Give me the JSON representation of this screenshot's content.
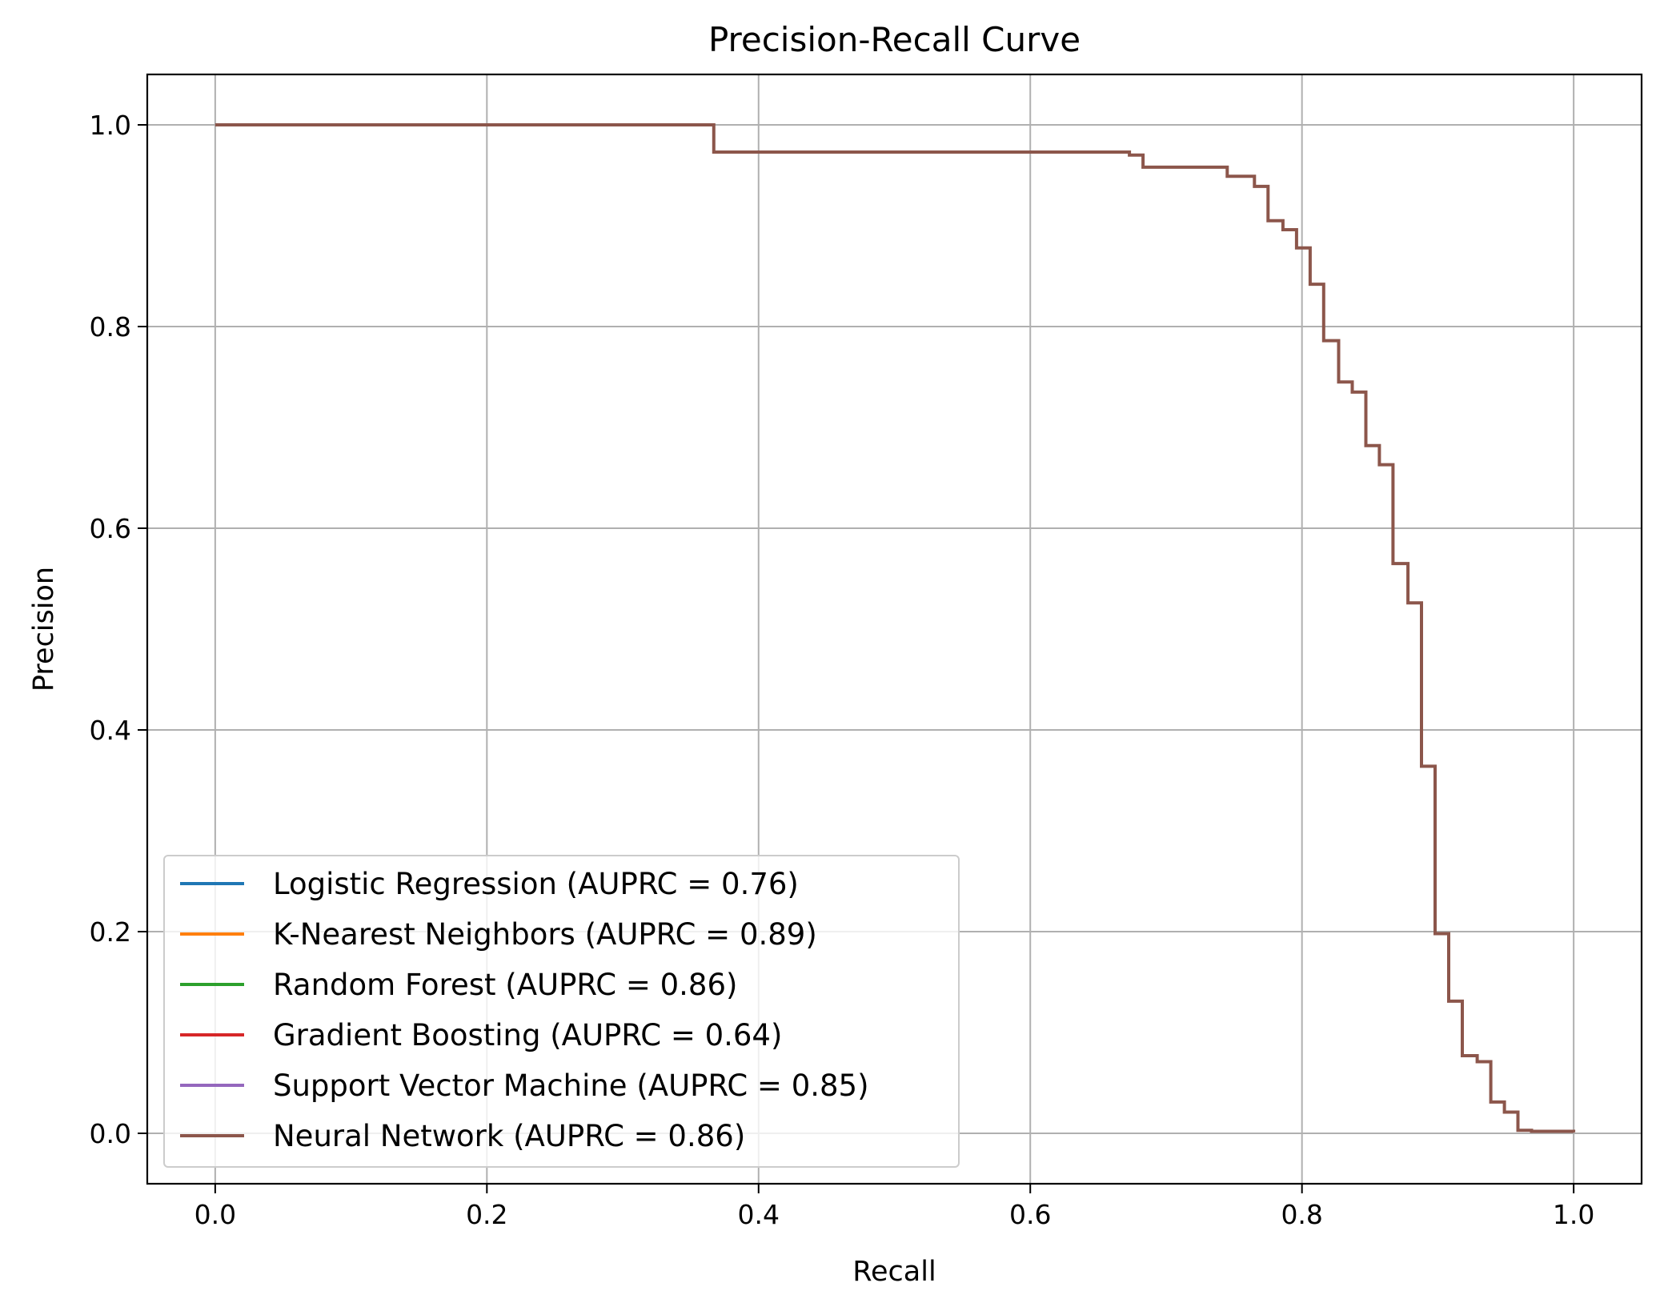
{
  "chart_data": {
    "type": "line",
    "title": "Precision-Recall Curve",
    "xlabel": "Recall",
    "ylabel": "Precision",
    "xlim": [
      -0.05,
      1.05
    ],
    "ylim": [
      -0.05,
      1.05
    ],
    "xticks": [
      0.0,
      0.2,
      0.4,
      0.6,
      0.8,
      1.0
    ],
    "yticks": [
      0.0,
      0.2,
      0.4,
      0.6,
      0.8,
      1.0
    ],
    "xtick_labels": [
      "0.0",
      "0.2",
      "0.4",
      "0.6",
      "0.8",
      "1.0"
    ],
    "ytick_labels": [
      "0.0",
      "0.2",
      "0.4",
      "0.6",
      "0.8",
      "1.0"
    ],
    "grid": true,
    "legend_position": "lower-left",
    "step": "post",
    "series": [
      {
        "name": "Logistic Regression (AUPRC = 0.76)",
        "color": "#1f77b4",
        "points": []
      },
      {
        "name": "K-Nearest Neighbors (AUPRC = 0.89)",
        "color": "#ff7f0e",
        "points": []
      },
      {
        "name": "Random Forest (AUPRC = 0.86)",
        "color": "#2ca02c",
        "points": []
      },
      {
        "name": "Gradient Boosting (AUPRC = 0.64)",
        "color": "#d62728",
        "points": []
      },
      {
        "name": "Support Vector Machine (AUPRC = 0.85)",
        "color": "#9467bd",
        "points": []
      },
      {
        "name": "Neural Network (AUPRC = 0.86)",
        "color": "#8c564b",
        "points": [
          [
            0.0,
            1.0
          ],
          [
            0.367,
            0.973
          ],
          [
            0.673,
            0.97
          ],
          [
            0.683,
            0.958
          ],
          [
            0.745,
            0.949
          ],
          [
            0.765,
            0.939
          ],
          [
            0.775,
            0.905
          ],
          [
            0.786,
            0.896
          ],
          [
            0.796,
            0.878
          ],
          [
            0.806,
            0.842
          ],
          [
            0.816,
            0.786
          ],
          [
            0.827,
            0.745
          ],
          [
            0.837,
            0.735
          ],
          [
            0.847,
            0.682
          ],
          [
            0.857,
            0.663
          ],
          [
            0.867,
            0.565
          ],
          [
            0.878,
            0.526
          ],
          [
            0.888,
            0.364
          ],
          [
            0.898,
            0.198
          ],
          [
            0.908,
            0.131
          ],
          [
            0.918,
            0.077
          ],
          [
            0.929,
            0.071
          ],
          [
            0.939,
            0.031
          ],
          [
            0.949,
            0.021
          ],
          [
            0.959,
            0.003
          ],
          [
            0.969,
            0.002
          ],
          [
            1.0,
            0.001
          ]
        ]
      }
    ]
  }
}
